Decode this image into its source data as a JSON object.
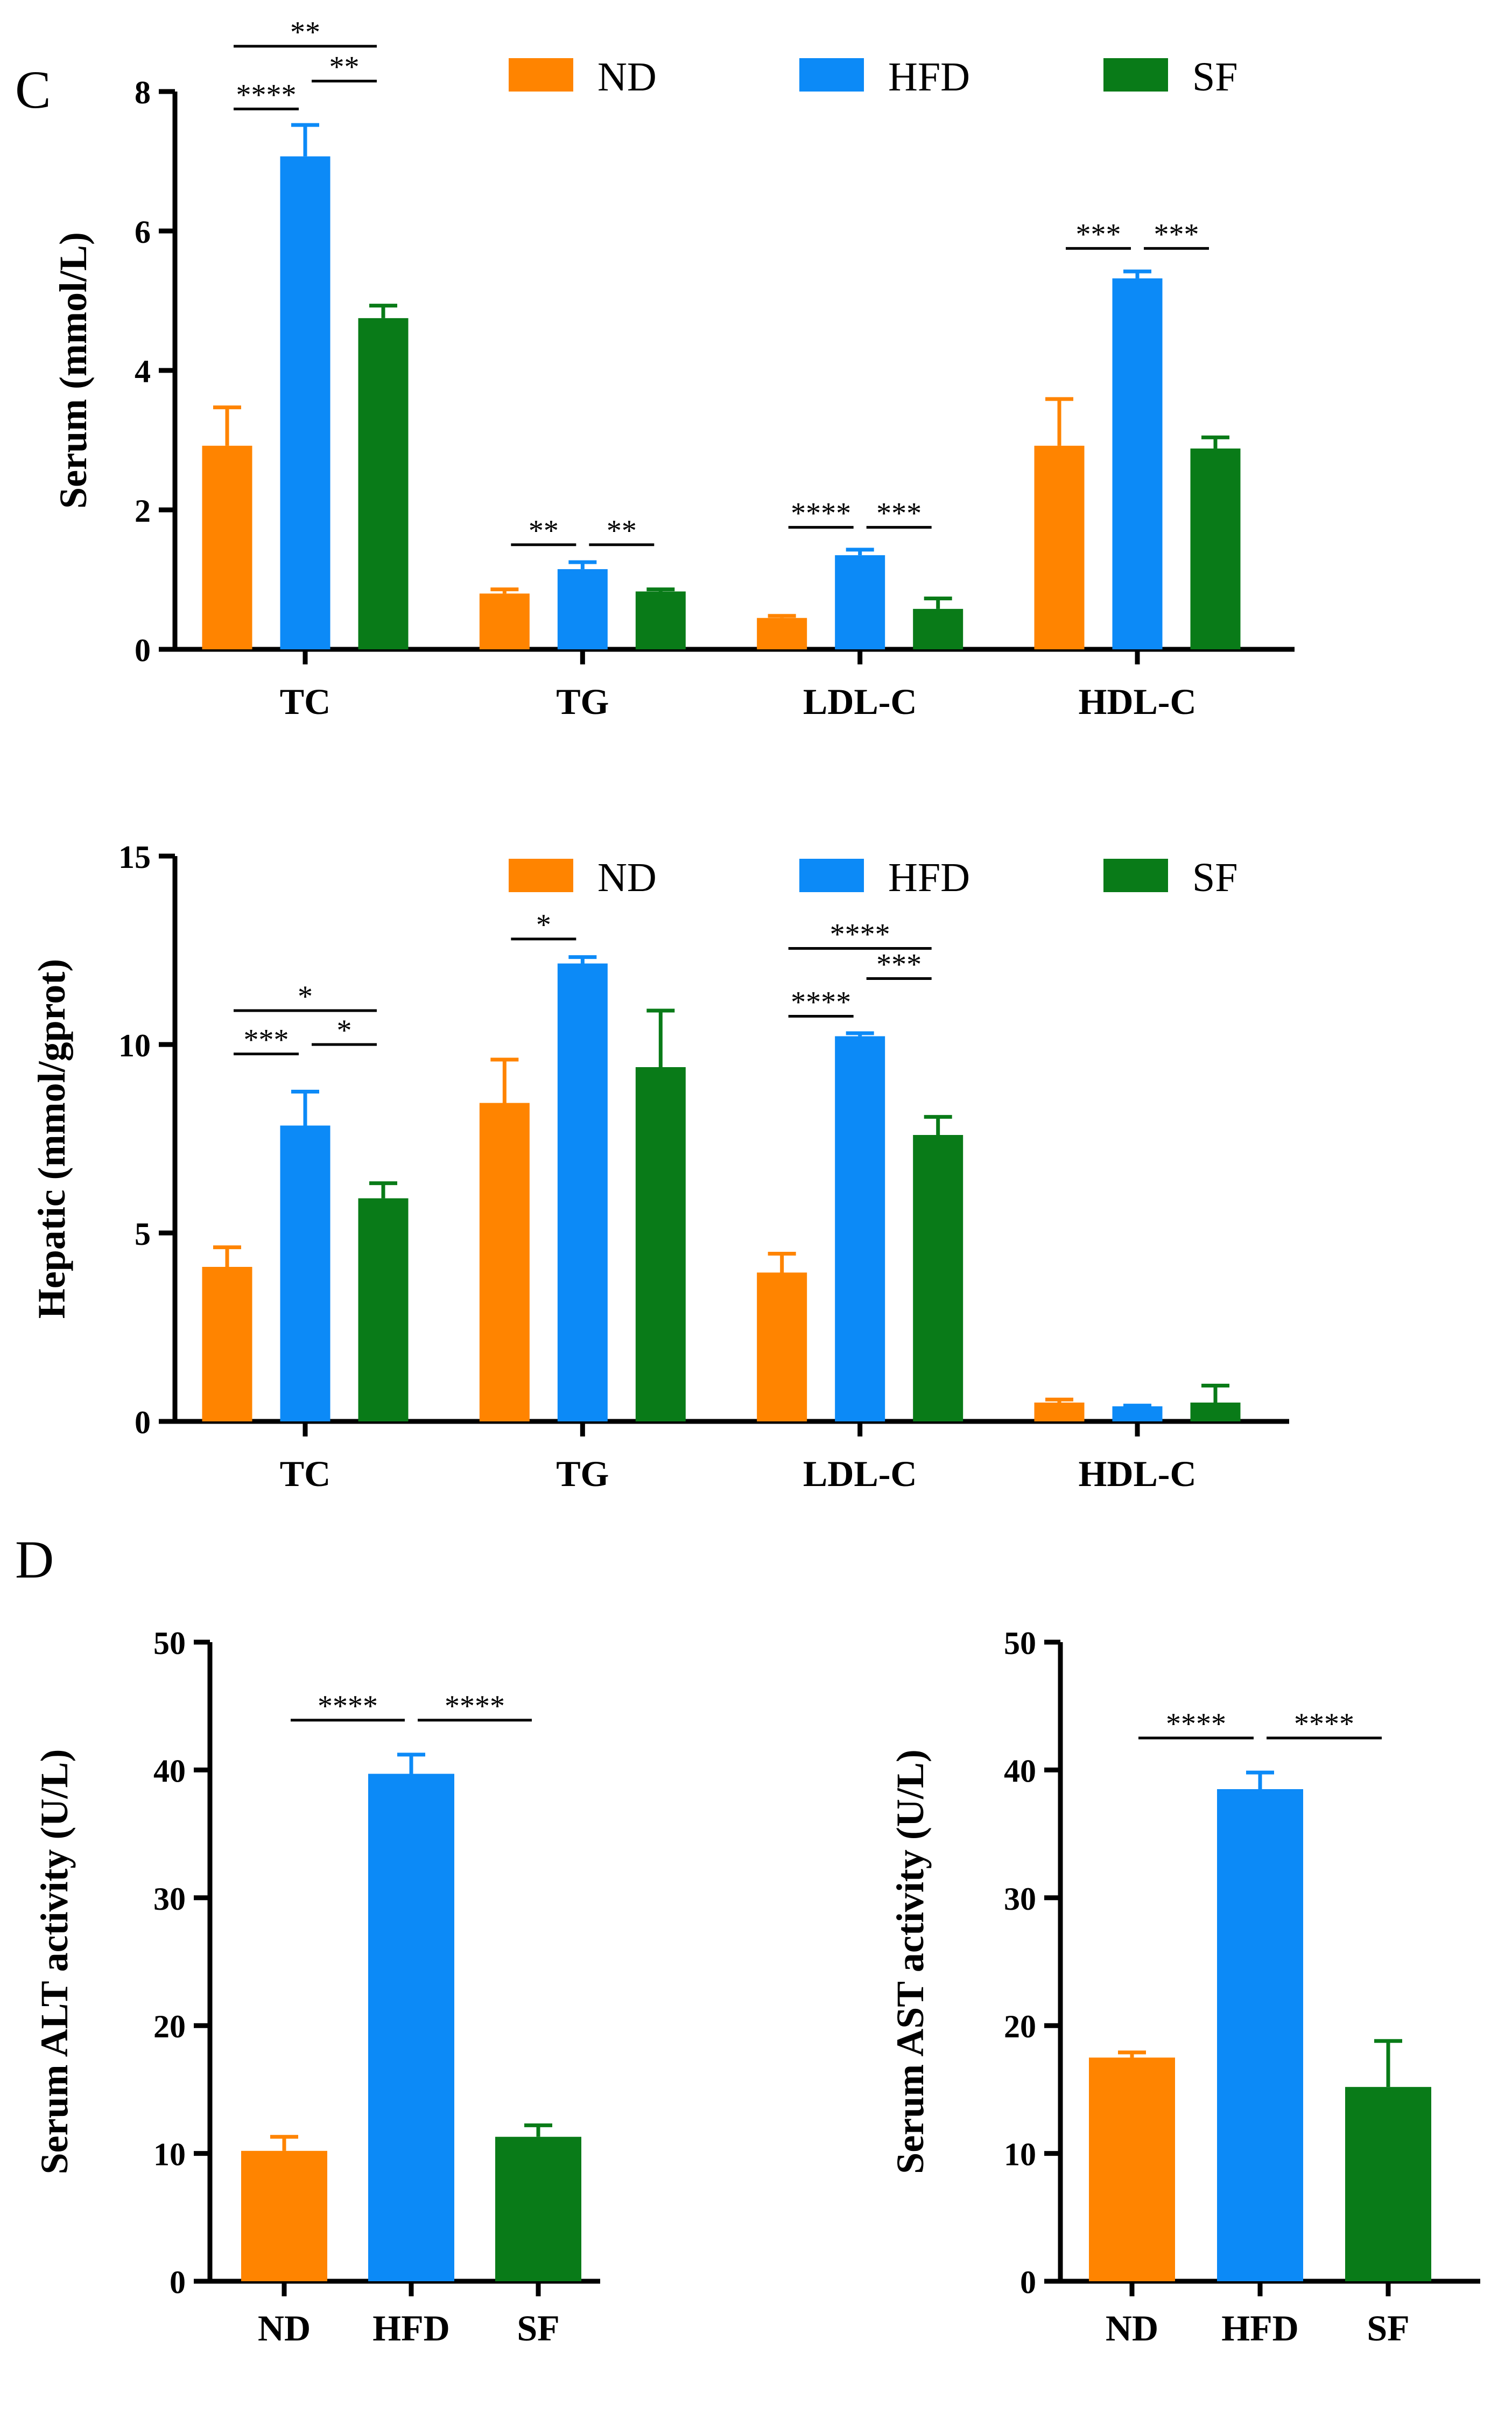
{
  "panel_letters": [
    "C",
    "D"
  ],
  "colors": {
    "ND": "#FF8400",
    "HFD": "#0C8AF7",
    "SF": "#097B18"
  },
  "chart_data": [
    {
      "type": "bar",
      "panel": "C",
      "ylabel": "Serum (mmol/L)",
      "ylim": [
        0,
        8
      ],
      "yticks": [
        0,
        2,
        4,
        6,
        8
      ],
      "categories": [
        "TC",
        "TG",
        "LDL-C",
        "HDL-C"
      ],
      "legend": [
        "ND",
        "HFD",
        "SF"
      ],
      "series": [
        {
          "name": "ND",
          "values": [
            2.92,
            0.8,
            0.45,
            2.92
          ],
          "errors": [
            0.55,
            0.06,
            0.03,
            0.67
          ]
        },
        {
          "name": "HFD",
          "values": [
            7.07,
            1.15,
            1.35,
            5.32
          ],
          "errors": [
            0.45,
            0.1,
            0.08,
            0.1
          ]
        },
        {
          "name": "SF",
          "values": [
            4.75,
            0.83,
            0.58,
            2.88
          ],
          "errors": [
            0.18,
            0.03,
            0.15,
            0.16
          ]
        }
      ],
      "significance": [
        {
          "cat": 0,
          "from": 0,
          "to": 1,
          "y": 7.75,
          "label": "****"
        },
        {
          "cat": 0,
          "from": 1,
          "to": 2,
          "y": 8.15,
          "label": "**"
        },
        {
          "cat": 0,
          "from": 0,
          "to": 2,
          "y": 8.65,
          "label": "**"
        },
        {
          "cat": 1,
          "from": 0,
          "to": 1,
          "y": 1.5,
          "label": "**"
        },
        {
          "cat": 1,
          "from": 1,
          "to": 2,
          "y": 1.5,
          "label": "**"
        },
        {
          "cat": 2,
          "from": 0,
          "to": 1,
          "y": 1.75,
          "label": "****"
        },
        {
          "cat": 2,
          "from": 1,
          "to": 2,
          "y": 1.75,
          "label": "***"
        },
        {
          "cat": 3,
          "from": 1,
          "to": 0,
          "y": 5.75,
          "label": "***"
        },
        {
          "cat": 3,
          "from": 1,
          "to": 2,
          "y": 5.75,
          "label": "***"
        }
      ]
    },
    {
      "type": "bar",
      "panel": "C",
      "ylabel": "Hepatic (mmol/gprot)",
      "ylim": [
        0,
        15
      ],
      "yticks": [
        0,
        5,
        10,
        15
      ],
      "categories": [
        "TC",
        "TG",
        "LDL-C",
        "HDL-C"
      ],
      "legend": [
        "ND",
        "HFD",
        "SF"
      ],
      "series": [
        {
          "name": "ND",
          "values": [
            4.1,
            8.45,
            3.95,
            0.5
          ],
          "errors": [
            0.52,
            1.15,
            0.5,
            0.08
          ]
        },
        {
          "name": "HFD",
          "values": [
            7.85,
            12.15,
            10.22,
            0.4
          ],
          "errors": [
            0.9,
            0.17,
            0.08,
            0.02
          ]
        },
        {
          "name": "SF",
          "values": [
            5.92,
            9.4,
            7.6,
            0.5
          ],
          "errors": [
            0.4,
            1.5,
            0.48,
            0.45
          ]
        }
      ],
      "significance": [
        {
          "cat": 0,
          "from": 0,
          "to": 1,
          "y": 9.75,
          "label": "***"
        },
        {
          "cat": 0,
          "from": 1,
          "to": 2,
          "y": 10.0,
          "label": "*"
        },
        {
          "cat": 0,
          "from": 0,
          "to": 2,
          "y": 10.9,
          "label": "*"
        },
        {
          "cat": 1,
          "from": 0,
          "to": 1,
          "y": 12.8,
          "label": "*"
        },
        {
          "cat": 2,
          "from": 0,
          "to": 1,
          "y": 10.75,
          "label": "****"
        },
        {
          "cat": 2,
          "from": 1,
          "to": 2,
          "y": 11.75,
          "label": "***"
        },
        {
          "cat": 2,
          "from": 0,
          "to": 2,
          "y": 12.55,
          "label": "****"
        }
      ]
    },
    {
      "type": "bar",
      "panel": "D",
      "ylabel": "Serum ALT activity (U/L)",
      "ylim": [
        0,
        50
      ],
      "yticks": [
        0,
        10,
        20,
        30,
        40,
        50
      ],
      "categories": [
        "ND",
        "HFD",
        "SF"
      ],
      "values": [
        10.2,
        39.7,
        11.3
      ],
      "errors": [
        1.1,
        1.5,
        0.9
      ],
      "significance": [
        {
          "from": 0,
          "to": 1,
          "y": 43.9,
          "label": "****"
        },
        {
          "from": 1,
          "to": 2,
          "y": 43.9,
          "label": "****"
        }
      ]
    },
    {
      "type": "bar",
      "panel": "D",
      "ylabel": "Serum AST activity (U/L)",
      "ylim": [
        0,
        50
      ],
      "yticks": [
        0,
        10,
        20,
        30,
        40,
        50
      ],
      "categories": [
        "ND",
        "HFD",
        "SF"
      ],
      "values": [
        17.5,
        38.5,
        15.2
      ],
      "errors": [
        0.4,
        1.3,
        3.6
      ],
      "significance": [
        {
          "from": 0,
          "to": 1,
          "y": 42.5,
          "label": "****"
        },
        {
          "from": 1,
          "to": 2,
          "y": 42.5,
          "label": "****"
        }
      ]
    }
  ]
}
